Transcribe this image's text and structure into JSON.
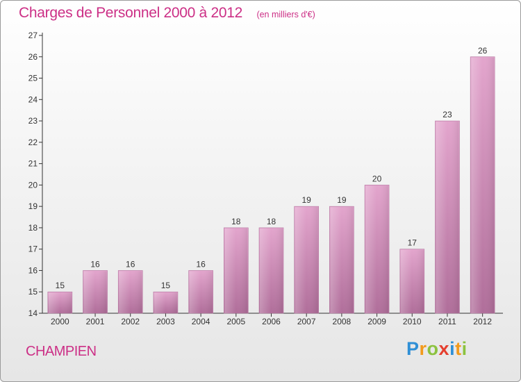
{
  "header": {
    "title": "Charges de Personnel 2000 à 2012",
    "unit": "(en milliers d'€)"
  },
  "footer": {
    "commune": "CHAMPIEN",
    "logo_text": "Proxiti"
  },
  "colors": {
    "title": "#cc2f86",
    "bar_top": "#e3a5cd",
    "bar_bottom": "#b06e9a",
    "axis": "#333333"
  },
  "chart_data": {
    "type": "bar",
    "title": "Charges de Personnel 2000 à 2012",
    "subtitle": "(en milliers d'€)",
    "xlabel": "",
    "ylabel": "",
    "categories": [
      "2000",
      "2001",
      "2002",
      "2003",
      "2004",
      "2005",
      "2006",
      "2007",
      "2008",
      "2009",
      "2010",
      "2011",
      "2012"
    ],
    "values": [
      15,
      16,
      16,
      15,
      16,
      18,
      18,
      19,
      19,
      20,
      17,
      23,
      26
    ],
    "ylim": [
      14,
      27
    ],
    "yticks": [
      14,
      15,
      16,
      17,
      18,
      19,
      20,
      21,
      22,
      23,
      24,
      25,
      26,
      27
    ],
    "grid": false,
    "legend": "none",
    "data_labels": true
  }
}
